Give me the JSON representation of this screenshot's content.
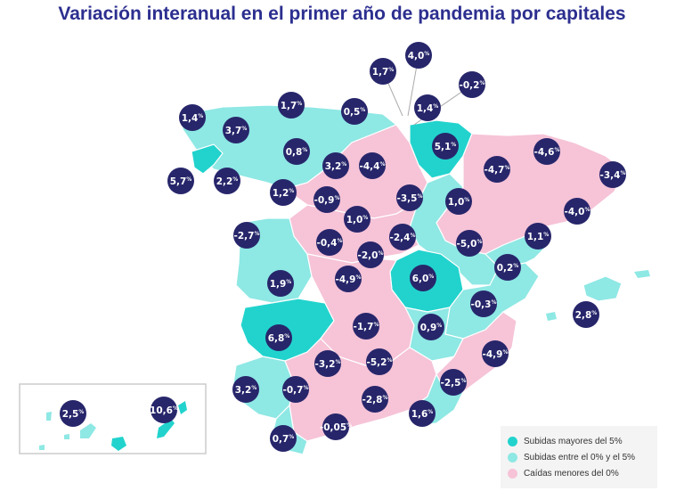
{
  "title": "Variación interanual en el primer año de pandemia por capitales",
  "colors": {
    "dark_teal": "#22d3cd",
    "light_teal": "#8ee8e4",
    "pink": "#f6c3d7",
    "bubble": "#27266b",
    "title": "#2c2f8f"
  },
  "legend": [
    {
      "label": "Subidas mayores del 5%",
      "color": "#22d3cd"
    },
    {
      "label": "Subidas entre el 0% y el 5%",
      "color": "#8ee8e4"
    },
    {
      "label": "Caídas menores del 0%",
      "color": "#f6c3d7"
    }
  ],
  "values": [
    {
      "value": "1,7",
      "unit": "%"
    },
    {
      "value": "4,0",
      "unit": "%"
    },
    {
      "value": "-0,2",
      "unit": "%"
    },
    {
      "value": "1,4",
      "unit": "%"
    },
    {
      "value": "3,7",
      "unit": "%"
    },
    {
      "value": "1,7",
      "unit": "%"
    },
    {
      "value": "0,5",
      "unit": "%"
    },
    {
      "value": "1,4",
      "unit": "%"
    },
    {
      "value": "5,1",
      "unit": "%"
    },
    {
      "value": "0,8",
      "unit": "%"
    },
    {
      "value": "3,2",
      "unit": "%"
    },
    {
      "value": "-4,4",
      "unit": "%"
    },
    {
      "value": "-4,7",
      "unit": "%"
    },
    {
      "value": "-4,6",
      "unit": "%"
    },
    {
      "value": "-3,4",
      "unit": "%"
    },
    {
      "value": "5,7",
      "unit": "%"
    },
    {
      "value": "2,2",
      "unit": "%"
    },
    {
      "value": "1,2",
      "unit": "%"
    },
    {
      "value": "-0,9",
      "unit": "%"
    },
    {
      "value": "-3,5",
      "unit": "%"
    },
    {
      "value": "1,0",
      "unit": "%"
    },
    {
      "value": "-4,0",
      "unit": "%"
    },
    {
      "value": "1,0",
      "unit": "%"
    },
    {
      "value": "-2,7",
      "unit": "%"
    },
    {
      "value": "-0,4",
      "unit": "%"
    },
    {
      "value": "-2,4",
      "unit": "%"
    },
    {
      "value": "-2,0",
      "unit": "%"
    },
    {
      "value": "-5,0",
      "unit": "%"
    },
    {
      "value": "1,1",
      "unit": "%"
    },
    {
      "value": "0,2",
      "unit": "%"
    },
    {
      "value": "1,9",
      "unit": "%"
    },
    {
      "value": "-4,9",
      "unit": "%"
    },
    {
      "value": "6,0",
      "unit": "%"
    },
    {
      "value": "-0,3",
      "unit": "%"
    },
    {
      "value": "2,8",
      "unit": "%"
    },
    {
      "value": "6,8",
      "unit": "%"
    },
    {
      "value": "-1,7",
      "unit": "%"
    },
    {
      "value": "0,9",
      "unit": "%"
    },
    {
      "value": "-3,2",
      "unit": "%"
    },
    {
      "value": "-5,2",
      "unit": "%"
    },
    {
      "value": "-4,9",
      "unit": "%"
    },
    {
      "value": "3,2",
      "unit": "%"
    },
    {
      "value": "-0,7",
      "unit": "%"
    },
    {
      "value": "-2,8",
      "unit": "%"
    },
    {
      "value": "-2,5",
      "unit": "%"
    },
    {
      "value": "2,5",
      "unit": "%"
    },
    {
      "value": "10,6",
      "unit": "%"
    },
    {
      "value": "1,6",
      "unit": "%"
    },
    {
      "value": "-0,05",
      "unit": "%"
    },
    {
      "value": "0,7",
      "unit": "%"
    }
  ]
}
